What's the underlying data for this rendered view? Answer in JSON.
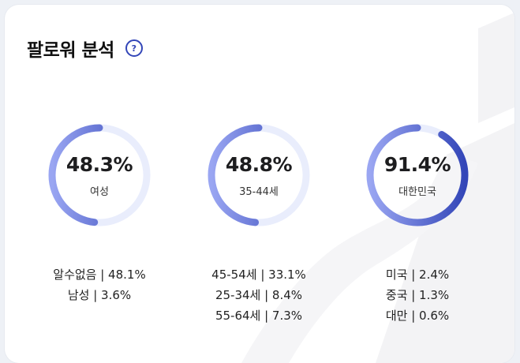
{
  "header": {
    "title": "팔로워 분석",
    "help_icon": "help-circle-icon",
    "help_glyph": "?"
  },
  "watermark_letters": "SA",
  "colors": {
    "ring_start": "#3346b8",
    "ring_end": "#9aa6f2",
    "ring_track": "#e9edfc",
    "help": "#3346b8"
  },
  "panels": [
    {
      "key": "gender",
      "percent_label": "48.3%",
      "percent_value": 48.3,
      "category": "여성",
      "others": [
        {
          "text": "알수없음 | 48.1%"
        },
        {
          "text": "남성 | 3.6%"
        }
      ]
    },
    {
      "key": "age",
      "percent_label": "48.8%",
      "percent_value": 48.8,
      "category": "35-44세",
      "others": [
        {
          "text": "45-54세 | 33.1%"
        },
        {
          "text": "25-34세 | 8.4%"
        },
        {
          "text": "55-64세 | 7.3%"
        }
      ]
    },
    {
      "key": "country",
      "percent_label": "91.4%",
      "percent_value": 91.4,
      "category": "대한민국",
      "others": [
        {
          "text": "미국 | 2.4%"
        },
        {
          "text": "중국 | 1.3%"
        },
        {
          "text": "대만 | 0.6%"
        }
      ]
    }
  ]
}
